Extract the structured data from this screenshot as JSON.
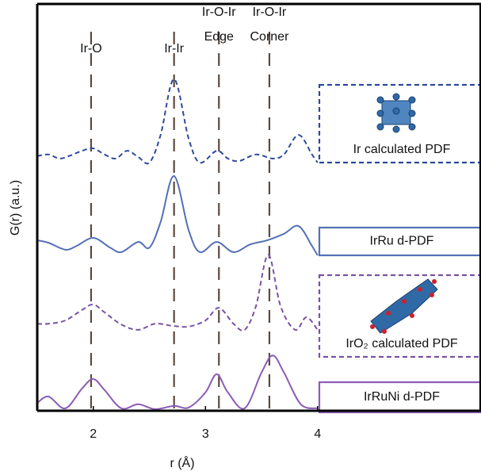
{
  "chart_data": {
    "type": "line",
    "x_label": "r (Å)",
    "y_label": "G(r) (a.u.)",
    "xlim": [
      1.5,
      5.45
    ],
    "xticks": [
      2,
      3,
      4
    ],
    "ylim": [
      0,
      10
    ],
    "reference_lines": [
      {
        "x": 1.98,
        "label": [
          "Ir-O"
        ]
      },
      {
        "x": 2.72,
        "label": [
          "Ir-Ir"
        ]
      },
      {
        "x": 3.12,
        "label": [
          "Ir-O-Ir",
          "Edge"
        ]
      },
      {
        "x": 3.57,
        "label": [
          "Ir-O-Ir",
          "Corner"
        ]
      }
    ],
    "series": [
      {
        "name": "Ir calculated PDF",
        "color": "#2d4b9b",
        "dashed": true,
        "x": [
          1.5,
          1.6,
          1.7,
          1.8,
          1.9,
          2.0,
          2.1,
          2.2,
          2.3,
          2.4,
          2.5,
          2.6,
          2.72,
          2.85,
          2.95,
          3.1,
          3.2,
          3.3,
          3.45,
          3.6,
          3.7,
          3.83,
          3.95,
          4.0
        ],
        "values": [
          6.26,
          6.3,
          6.2,
          6.28,
          6.39,
          6.45,
          6.3,
          6.2,
          6.39,
          6.24,
          6.1,
          6.78,
          8.15,
          6.69,
          6.1,
          6.39,
          6.2,
          6.14,
          6.3,
          6.2,
          6.3,
          6.78,
          6.3,
          6.1
        ]
      },
      {
        "name": "IrRu d-PDF",
        "color": "#5470b5",
        "dashed": false,
        "x": [
          1.5,
          1.6,
          1.75,
          1.85,
          2.0,
          2.15,
          2.25,
          2.4,
          2.5,
          2.6,
          2.72,
          2.85,
          2.95,
          3.1,
          3.25,
          3.4,
          3.55,
          3.7,
          3.83,
          3.95,
          4.0
        ],
        "values": [
          4.19,
          4.13,
          3.96,
          4.05,
          4.25,
          4.01,
          3.9,
          4.15,
          4.01,
          4.64,
          5.77,
          4.44,
          3.9,
          4.15,
          3.9,
          4.09,
          4.19,
          4.35,
          4.54,
          4.05,
          3.82
        ]
      },
      {
        "name": "IrO₂ calculated PDF",
        "color": "#7a52a6",
        "dashed": true,
        "x": [
          1.5,
          1.6,
          1.75,
          1.9,
          2.0,
          2.1,
          2.25,
          2.4,
          2.55,
          2.7,
          2.85,
          3.0,
          3.12,
          3.25,
          3.35,
          3.45,
          3.56,
          3.67,
          3.8,
          3.9,
          4.0
        ],
        "values": [
          2.14,
          2.14,
          2.22,
          2.48,
          2.61,
          2.42,
          2.12,
          1.99,
          2.14,
          2.09,
          2.07,
          2.22,
          2.53,
          2.14,
          1.99,
          2.57,
          3.83,
          2.57,
          1.99,
          2.3,
          1.99
        ]
      },
      {
        "name": "IrRuNi d-PDF",
        "color": "#8b5cb5",
        "dashed": false,
        "x": [
          1.5,
          1.6,
          1.75,
          1.9,
          2.0,
          2.1,
          2.25,
          2.4,
          2.55,
          2.72,
          2.85,
          3.0,
          3.1,
          3.2,
          3.35,
          3.5,
          3.6,
          3.7,
          3.85,
          4.0
        ],
        "values": [
          0.19,
          0.35,
          0.06,
          0.55,
          0.78,
          0.51,
          0.06,
          0.16,
          0.04,
          0.12,
          0.08,
          0.45,
          0.9,
          0.45,
          0.06,
          0.94,
          1.36,
          0.94,
          0.16,
          0.06
        ]
      }
    ]
  }
}
